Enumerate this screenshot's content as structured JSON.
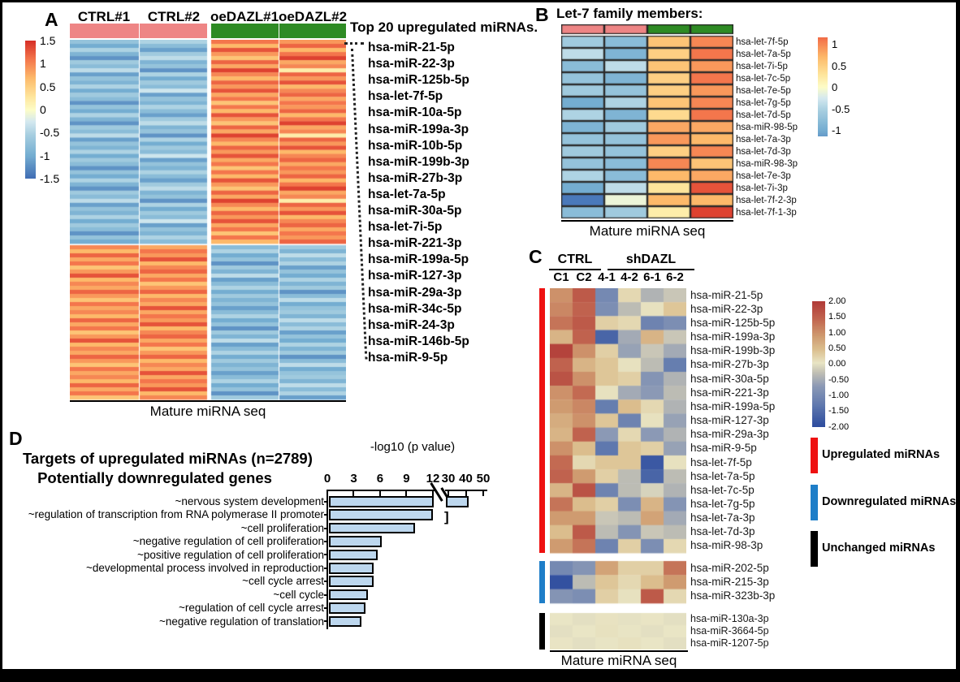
{
  "colormaps": {
    "ab": {
      "stops": [
        [
          -1.5,
          "#3f6cb4"
        ],
        [
          -1.0,
          "#74add1"
        ],
        [
          -0.55,
          "#a6cee0"
        ],
        [
          -0.25,
          "#d5e9f0"
        ],
        [
          0,
          "#fdfdc8"
        ],
        [
          0.3,
          "#fee59b"
        ],
        [
          0.7,
          "#fdb96a"
        ],
        [
          1.1,
          "#f4764c"
        ],
        [
          1.5,
          "#d73027"
        ]
      ]
    },
    "c": {
      "stops": [
        [
          -2,
          "#2c4b9e"
        ],
        [
          -1.3,
          "#5f78ae"
        ],
        [
          -0.7,
          "#8b99b5"
        ],
        [
          -0.25,
          "#c2c0b4"
        ],
        [
          0.05,
          "#e9e5c5"
        ],
        [
          0.45,
          "#dcc191"
        ],
        [
          0.9,
          "#cf9b70"
        ],
        [
          1.4,
          "#c36a52"
        ],
        [
          2,
          "#b13b38"
        ]
      ]
    }
  },
  "chart_data": [
    {
      "id": "A",
      "type": "heatmap",
      "panel_letter": "A",
      "columns": [
        "CTRL#1",
        "CTRL#2",
        "oeDAZL#1",
        "oeDAZL#2"
      ],
      "column_group_colors": [
        "#ee8585",
        "#ee8585",
        "#2e8b24",
        "#2e8b24"
      ],
      "colorbar_ticks": [
        "1.5",
        "1",
        "0.5",
        "0",
        "-0.5",
        "-1",
        "-1.5"
      ],
      "scale_domain": [
        -1.5,
        1.5
      ],
      "list_title": "Top 20 upregulated miRNAs.",
      "top20_mirnas": [
        "hsa-miR-21-5p",
        "hsa-miR-22-3p",
        "hsa-miR-125b-5p",
        "hsa-let-7f-5p",
        "hsa-miR-10a-5p",
        "hsa-miR-199a-3p",
        "hsa-miR-10b-5p",
        "hsa-miR-199b-3p",
        "hsa-miR-27b-3p",
        "hsa-let-7a-5p",
        "hsa-miR-30a-5p",
        "hsa-let-7i-5p",
        "hsa-miR-221-3p",
        "hsa-miR-199a-5p",
        "hsa-miR-127-3p",
        "hsa-miR-29a-3p",
        "hsa-miR-34c-5p",
        "hsa-miR-24-3p",
        "hsa-miR-146b-5p",
        "hsa-miR-9-5p"
      ],
      "caption": "Mature miRNA seq",
      "upper_block": {
        "rows": 50,
        "col_value_cycles": [
          [
            -0.7,
            -1.0,
            -0.5,
            -0.9,
            -1.2,
            -0.6,
            -0.8,
            -0.4,
            -1.1,
            -0.7,
            -0.9,
            -0.5,
            -1.0,
            -0.6,
            -0.8,
            -1.2
          ],
          [
            -0.5,
            -0.8,
            -1.1,
            -0.6,
            -0.4,
            -0.9,
            -0.7,
            -1.2,
            -0.5,
            -1.0,
            -0.6,
            -0.8,
            -0.3,
            -1.1,
            -0.7,
            -0.9
          ],
          [
            1.1,
            0.7,
            1.3,
            0.9,
            0.6,
            1.2,
            0.8,
            1.4,
            1.0,
            0.7,
            1.2,
            0.9,
            1.3,
            0.8,
            1.1,
            0.6
          ],
          [
            0.9,
            1.2,
            0.7,
            1.1,
            1.4,
            0.8,
            1.0,
            0.2,
            1.2,
            0.9,
            1.3,
            0.7,
            1.0,
            1.2,
            0.8,
            1.1
          ]
        ]
      },
      "lower_block": {
        "rows": 38,
        "col_value_cycles": [
          [
            1.0,
            0.7,
            1.2,
            0.8,
            1.1,
            0.6,
            0.9,
            1.3,
            0.7,
            1.0,
            0.8,
            1.2,
            0.9,
            0.6,
            1.1,
            0.8
          ],
          [
            0.8,
            1.1,
            0.9,
            1.3,
            0.7,
            1.0,
            1.2,
            0.8,
            1.1,
            0.6,
            0.9,
            1.2,
            0.7,
            1.0,
            0.8,
            1.3
          ],
          [
            -0.8,
            -0.5,
            -1.0,
            -0.7,
            -1.2,
            -0.6,
            -0.9,
            -0.4,
            -1.1,
            -0.8,
            -0.5,
            -1.0,
            -0.6,
            -0.9,
            -0.7,
            -1.1
          ],
          [
            -0.6,
            -0.9,
            -0.4,
            -0.8,
            -0.5,
            -1.1,
            -0.7,
            -1.0,
            -0.5,
            -0.9,
            -0.6,
            -1.2,
            -0.8,
            -0.4,
            -1.0,
            -0.7
          ]
        ]
      }
    },
    {
      "id": "B",
      "type": "heatmap",
      "panel_letter": "B",
      "title": "Let-7 family members:",
      "column_group_colors": [
        "#ee8585",
        "#ee8585",
        "#2e8b24",
        "#2e8b24"
      ],
      "rows": [
        "hsa-let-7f-5p",
        "hsa-let-7a-5p",
        "hsa-let-7i-5p",
        "hsa-let-7c-5p",
        "hsa-let-7e-5p",
        "hsa-let-7g-5p",
        "hsa-let-7d-5p",
        "hsa-miR-98-5p",
        "hsa-let-7a-3p",
        "hsa-let-7d-3p",
        "hsa-miR-98-3p",
        "hsa-let-7e-3p",
        "hsa-let-7i-3p",
        "hsa-let-7f-2-3p",
        "hsa-let-7f-1-3p"
      ],
      "matrix": [
        [
          -0.6,
          -0.8,
          0.6,
          1.0
        ],
        [
          -0.4,
          -0.9,
          0.5,
          1.1
        ],
        [
          -0.8,
          -0.4,
          0.6,
          0.9
        ],
        [
          -0.7,
          -0.9,
          0.5,
          1.1
        ],
        [
          -0.6,
          -0.7,
          0.5,
          0.9
        ],
        [
          -1.0,
          -0.5,
          0.6,
          1.0
        ],
        [
          -0.5,
          -0.9,
          0.4,
          1.1
        ],
        [
          -0.9,
          -0.6,
          0.8,
          0.8
        ],
        [
          -0.7,
          -0.7,
          0.9,
          0.7
        ],
        [
          -0.6,
          -0.7,
          0.5,
          1.0
        ],
        [
          -0.7,
          -0.8,
          1.0,
          0.6
        ],
        [
          -0.5,
          -0.8,
          0.7,
          0.8
        ],
        [
          -1.0,
          -0.4,
          0.3,
          1.3
        ],
        [
          -1.4,
          -0.1,
          0.7,
          0.7
        ],
        [
          -0.8,
          -0.6,
          0.2,
          1.4
        ]
      ],
      "colorbar_ticks": [
        "1",
        "0.5",
        "0",
        "-0.5",
        "-1"
      ],
      "scale_domain": [
        -1.15,
        1.15
      ],
      "caption": "Mature miRNA seq"
    },
    {
      "id": "C",
      "type": "heatmap",
      "panel_letter": "C",
      "col_groups": [
        {
          "label": "CTRL",
          "cols": [
            "C1",
            "C2"
          ]
        },
        {
          "label": "shDAZL",
          "cols": [
            "4-1",
            "4-2",
            "6-1",
            "6-2"
          ]
        }
      ],
      "row_groups": [
        {
          "label": "Upregulated miRNAs",
          "bar_color": "#ee1111",
          "rows": [
            "hsa-miR-21-5p",
            "hsa-miR-22-3p",
            "hsa-miR-125b-5p",
            "hsa-miR-199a-3p",
            "hsa-miR-199b-3p",
            "hsa-miR-27b-3p",
            "hsa-miR-30a-5p",
            "hsa-miR-221-3p",
            "hsa-miR-199a-5p",
            "hsa-miR-127-3p",
            "hsa-miR-29a-3p",
            "hsa-miR-9-5p",
            "hsa-let-7f-5p",
            "hsa-let-7a-5p",
            "hsa-let-7c-5p",
            "hsa-let-7g-5p",
            "hsa-let-7a-3p",
            "hsa-let-7d-3p",
            "hsa-miR-98-3p"
          ],
          "matrix": [
            [
              1.0,
              1.6,
              -1.0,
              0.2,
              -0.4,
              -0.2
            ],
            [
              1.1,
              1.5,
              -0.9,
              -0.3,
              0.1,
              0.4
            ],
            [
              1.3,
              1.6,
              0.3,
              0.2,
              -1.1,
              -0.9
            ],
            [
              0.6,
              1.5,
              -1.6,
              -0.5,
              0.6,
              -0.2
            ],
            [
              1.9,
              1.0,
              0.3,
              -0.6,
              -0.2,
              -0.5
            ],
            [
              1.5,
              0.6,
              0.4,
              0.1,
              -0.3,
              -1.2
            ],
            [
              1.7,
              1.0,
              0.4,
              0.3,
              -0.8,
              -0.4
            ],
            [
              1.0,
              1.4,
              0.1,
              -0.5,
              -0.7,
              -0.3
            ],
            [
              0.9,
              1.1,
              -1.2,
              0.5,
              0.2,
              -0.4
            ],
            [
              0.7,
              1.0,
              0.4,
              -1.1,
              0.1,
              -0.6
            ],
            [
              0.6,
              1.5,
              -0.7,
              0.2,
              -0.7,
              -0.4
            ],
            [
              1.0,
              0.5,
              -1.3,
              0.4,
              0.3,
              -0.6
            ],
            [
              1.4,
              0.2,
              0.4,
              0.4,
              -1.8,
              0.1
            ],
            [
              1.5,
              0.9,
              0.3,
              -0.3,
              -1.6,
              -0.3
            ],
            [
              0.6,
              1.7,
              -1.1,
              -0.3,
              -0.1,
              -0.4
            ],
            [
              1.3,
              0.5,
              0.3,
              -0.9,
              0.6,
              -0.8
            ],
            [
              0.9,
              0.9,
              -0.2,
              -0.3,
              0.8,
              -0.5
            ],
            [
              0.5,
              1.6,
              -0.3,
              -0.8,
              -0.2,
              -0.3
            ],
            [
              0.9,
              1.3,
              -1.1,
              0.3,
              -0.9,
              0.2
            ]
          ]
        },
        {
          "label": "Downregulated miRNAs",
          "bar_color": "#1e7ec8",
          "rows": [
            "hsa-miR-202-5p",
            "hsa-miR-215-3p",
            "hsa-miR-323b-3p"
          ],
          "matrix": [
            [
              -1.0,
              -0.8,
              0.8,
              0.3,
              0.3,
              1.3
            ],
            [
              -1.9,
              -0.3,
              0.4,
              0.2,
              0.5,
              0.9
            ],
            [
              -0.8,
              -0.9,
              0.3,
              0.1,
              1.6,
              0.2
            ]
          ]
        },
        {
          "label": "Unchanged miRNAs",
          "bar_color": "#000000",
          "rows": [
            "hsa-miR-130a-3p",
            "hsa-miR-3664-5p",
            "hsa-miR-1207-5p"
          ],
          "matrix": [
            [
              0.05,
              0.0,
              0.08,
              0.02,
              0.06,
              0.0
            ],
            [
              0.0,
              0.05,
              0.1,
              0.04,
              0.0,
              0.05
            ],
            [
              0.06,
              0.0,
              0.04,
              0.1,
              0.05,
              0.0
            ]
          ]
        }
      ],
      "side_legend": [
        {
          "label": "Upregulated miRNAs",
          "color": "#ee1111"
        },
        {
          "label": "Downregulated miRNAs",
          "color": "#1e7ec8"
        },
        {
          "label": "Unchanged miRNAs",
          "color": "#000000"
        }
      ],
      "colorbar_ticks": [
        "2.00",
        "1.50",
        "1.00",
        "0.50",
        "0.00",
        "-0.50",
        "-1.00",
        "-1.50",
        "-2.00"
      ],
      "scale_domain": [
        -2,
        2
      ],
      "caption": "Mature miRNA seq"
    },
    {
      "id": "D",
      "type": "bar",
      "panel_letter": "D",
      "title_line1": "Targets of upregulated miRNAs (n=2789)",
      "title_line2": "Potentially downregulated genes",
      "xlabel": "-log10 (p value)",
      "ticks_linear": [
        "0",
        "3",
        "6",
        "9",
        "12"
      ],
      "ticks_after_break": [
        "30",
        "40",
        "50"
      ],
      "categories": [
        "~nervous system development",
        "~regulation of transcription from RNA polymerase II promoter",
        "~cell proliferation",
        "~negative regulation of cell proliferation",
        "~positive regulation of cell proliferation",
        "~developmental process involved in reproduction",
        "~cell cycle arrest",
        "~cell cycle",
        "~regulation of cell cycle arrest",
        "~negative regulation of translation"
      ],
      "values": [
        42,
        30,
        10,
        6.2,
        5.7,
        5.3,
        5.3,
        4.6,
        4.3,
        3.9
      ],
      "axis_break": {
        "between": [
          12,
          30
        ],
        "bar_through_break": 0,
        "bracket_bar": 1,
        "bracket_glyph": "]"
      },
      "bar_fill": "#bdd7ee"
    }
  ]
}
